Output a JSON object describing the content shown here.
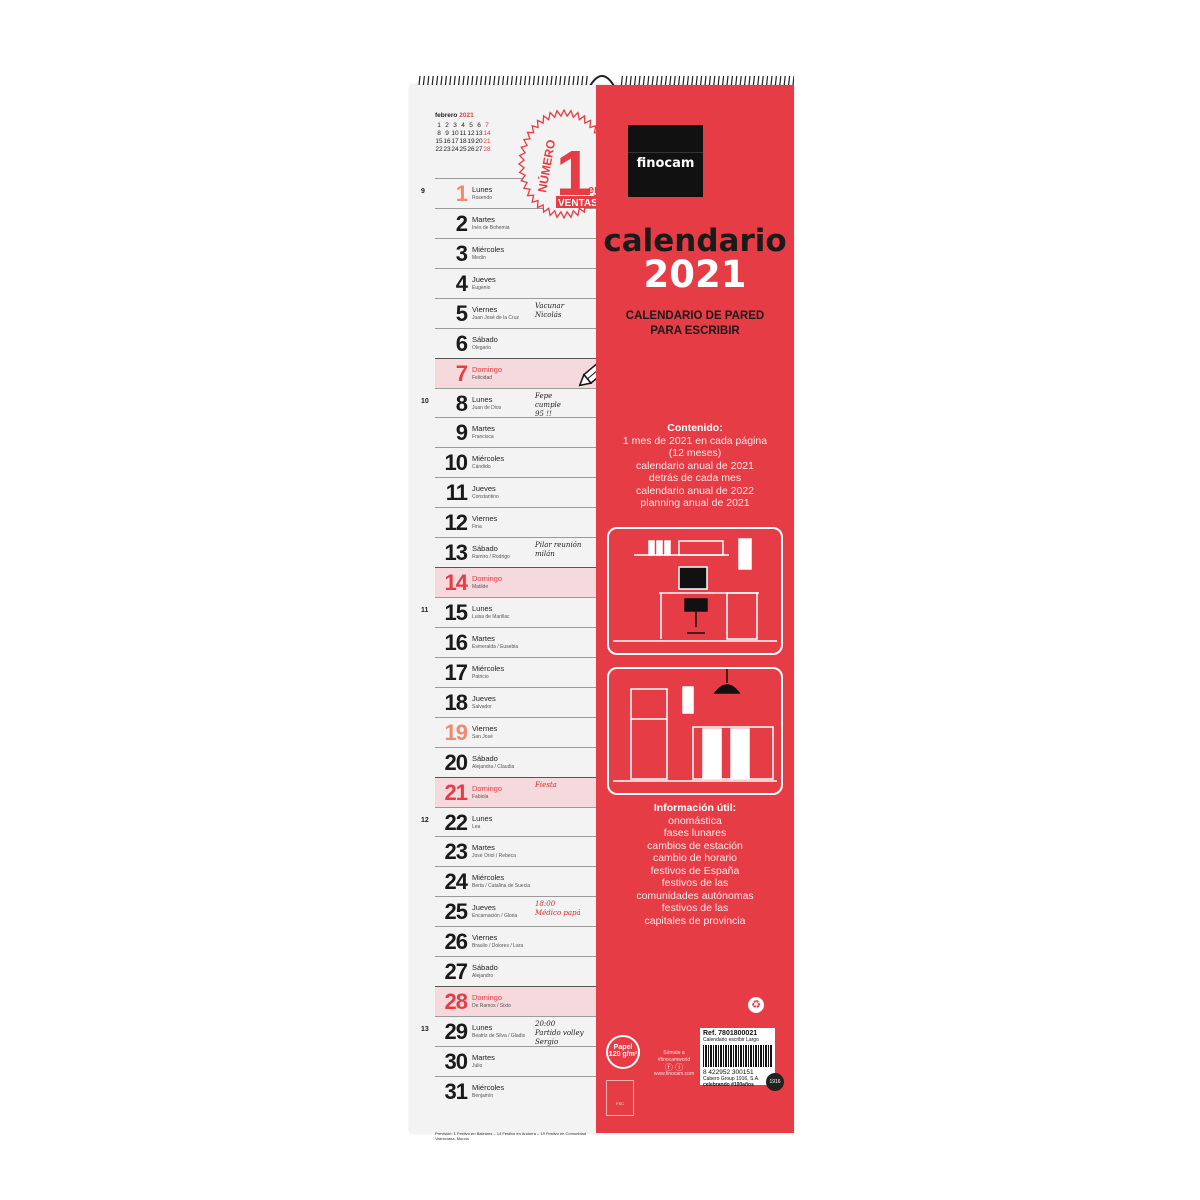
{
  "mini_calendar": {
    "month": "febrero",
    "year": "2021",
    "weeks": [
      [
        "1",
        "2",
        "3",
        "4",
        "5",
        "6",
        "7"
      ],
      [
        "8",
        "9",
        "10",
        "11",
        "12",
        "13",
        "14"
      ],
      [
        "15",
        "16",
        "17",
        "18",
        "19",
        "20",
        "21"
      ],
      [
        "22",
        "23",
        "24",
        "25",
        "26",
        "27",
        "28"
      ]
    ]
  },
  "badge": {
    "line1": "NÚMERO",
    "big": "1",
    "line2": "en",
    "line3": "VENTAS"
  },
  "days": [
    {
      "num": "1",
      "name": "Lunes",
      "saint": "Rosendo",
      "type": "first",
      "week": "9",
      "note": ""
    },
    {
      "num": "2",
      "name": "Martes",
      "saint": "Inés de Bohemia",
      "type": "",
      "week": "",
      "note": ""
    },
    {
      "num": "3",
      "name": "Miércoles",
      "saint": "Medín",
      "type": "",
      "week": "",
      "note": ""
    },
    {
      "num": "4",
      "name": "Jueves",
      "saint": "Eugenio",
      "type": "",
      "week": "",
      "note": ""
    },
    {
      "num": "5",
      "name": "Viernes",
      "saint": "Juan José de la Cruz",
      "type": "",
      "week": "",
      "note": "Vacunar\nNicolás"
    },
    {
      "num": "6",
      "name": "Sábado",
      "saint": "Olegario",
      "type": "",
      "week": "",
      "note": ""
    },
    {
      "num": "7",
      "name": "Domingo",
      "saint": "Felicidad",
      "type": "sun",
      "week": "",
      "note": ""
    },
    {
      "num": "8",
      "name": "Lunes",
      "saint": "Juan de Dios",
      "type": "",
      "week": "10",
      "note": "Fepe\ncumple\n95 !!"
    },
    {
      "num": "9",
      "name": "Martes",
      "saint": "Francisca",
      "type": "",
      "week": "",
      "note": ""
    },
    {
      "num": "10",
      "name": "Miércoles",
      "saint": "Cándido",
      "type": "",
      "week": "",
      "note": ""
    },
    {
      "num": "11",
      "name": "Jueves",
      "saint": "Constantino",
      "type": "",
      "week": "",
      "note": ""
    },
    {
      "num": "12",
      "name": "Viernes",
      "saint": "Fina",
      "type": "",
      "week": "",
      "note": ""
    },
    {
      "num": "13",
      "name": "Sábado",
      "saint": "Ramiro / Rodrigo",
      "type": "",
      "week": "",
      "note": "Pilar reunión\nmilán"
    },
    {
      "num": "14",
      "name": "Domingo",
      "saint": "Matilde",
      "type": "sun",
      "week": "",
      "note": ""
    },
    {
      "num": "15",
      "name": "Lunes",
      "saint": "Luisa de Marillac",
      "type": "",
      "week": "11",
      "note": ""
    },
    {
      "num": "16",
      "name": "Martes",
      "saint": "Esmeralda / Eusebia",
      "type": "",
      "week": "",
      "note": ""
    },
    {
      "num": "17",
      "name": "Miércoles",
      "saint": "Patricio",
      "type": "",
      "week": "",
      "note": ""
    },
    {
      "num": "18",
      "name": "Jueves",
      "saint": "Salvador",
      "type": "",
      "week": "",
      "note": ""
    },
    {
      "num": "19",
      "name": "Viernes",
      "saint": "San José",
      "type": "hol",
      "week": "",
      "note": ""
    },
    {
      "num": "20",
      "name": "Sábado",
      "saint": "Alejandra / Claudia",
      "type": "",
      "week": "",
      "note": ""
    },
    {
      "num": "21",
      "name": "Domingo",
      "saint": "Fabiola",
      "type": "sun",
      "week": "",
      "note": "Fiesta"
    },
    {
      "num": "22",
      "name": "Lunes",
      "saint": "Lea",
      "type": "",
      "week": "12",
      "note": ""
    },
    {
      "num": "23",
      "name": "Martes",
      "saint": "José Oriol / Rebeca",
      "type": "",
      "week": "",
      "note": ""
    },
    {
      "num": "24",
      "name": "Miércoles",
      "saint": "Berta / Catalina de Suecia",
      "type": "",
      "week": "",
      "note": ""
    },
    {
      "num": "25",
      "name": "Jueves",
      "saint": "Encarnación / Gloria",
      "type": "",
      "week": "",
      "note": "18:00\nMédico papá"
    },
    {
      "num": "26",
      "name": "Viernes",
      "saint": "Braulio / Dolores / Lara",
      "type": "",
      "week": "",
      "note": ""
    },
    {
      "num": "27",
      "name": "Sábado",
      "saint": "Alejandro",
      "type": "",
      "week": "",
      "note": ""
    },
    {
      "num": "28",
      "name": "Domingo",
      "saint": "De Ramos / Sixto",
      "type": "sun",
      "week": "",
      "note": ""
    },
    {
      "num": "29",
      "name": "Lunes",
      "saint": "Beatriz de Silva / Gladis",
      "type": "",
      "week": "13",
      "note": "20:00\nPartido volley\nSergio"
    },
    {
      "num": "30",
      "name": "Martes",
      "saint": "Julio",
      "type": "",
      "week": "",
      "note": ""
    },
    {
      "num": "31",
      "name": "Miércoles",
      "saint": "Benjamín",
      "type": "",
      "week": "",
      "note": ""
    }
  ],
  "footnote": "Previsión: 1 Festivo en Baleares – 14 Festivo en Andorra – 19 Festivo en Comunidad Valenciana, Murcia",
  "brand": "finocam",
  "title": "calendario",
  "year": "2021",
  "subtitle": [
    "CALENDARIO DE PARED",
    "PARA ESCRIBIR"
  ],
  "contents": {
    "heading": "Contenido:",
    "lines": [
      "1 mes de 2021 en cada página",
      "(12 meses)",
      "calendario anual de 2021",
      "detrás de cada mes",
      "calendario anual de 2022",
      "planning anual de 2021"
    ]
  },
  "info": {
    "heading": "Información útil:",
    "lines": [
      "onomástica",
      "fases lunares",
      "cambios de estación",
      "cambio de horario",
      "festivos de España",
      "festivos de las",
      "comunidades autónomas",
      "festivos de las",
      "capitales de provincia"
    ]
  },
  "paper": {
    "line1": "Papel",
    "line2": "120 g/m²"
  },
  "social": {
    "line1": "Súmate a",
    "handle": "#finocamworld",
    "web": "www.finocam.com"
  },
  "fsc": "FSC",
  "product": {
    "ref": "Ref. 7801800021",
    "name": "Calendario escribir Largo",
    "ean": "8 422952 300151",
    "company": "Cabero Group 1916, S.A.",
    "tag": "celebrando #100años",
    "seal": "1916"
  },
  "colors": {
    "red": "#e53c45",
    "sunday_bg": "#f6d9dc",
    "black": "#111111"
  }
}
